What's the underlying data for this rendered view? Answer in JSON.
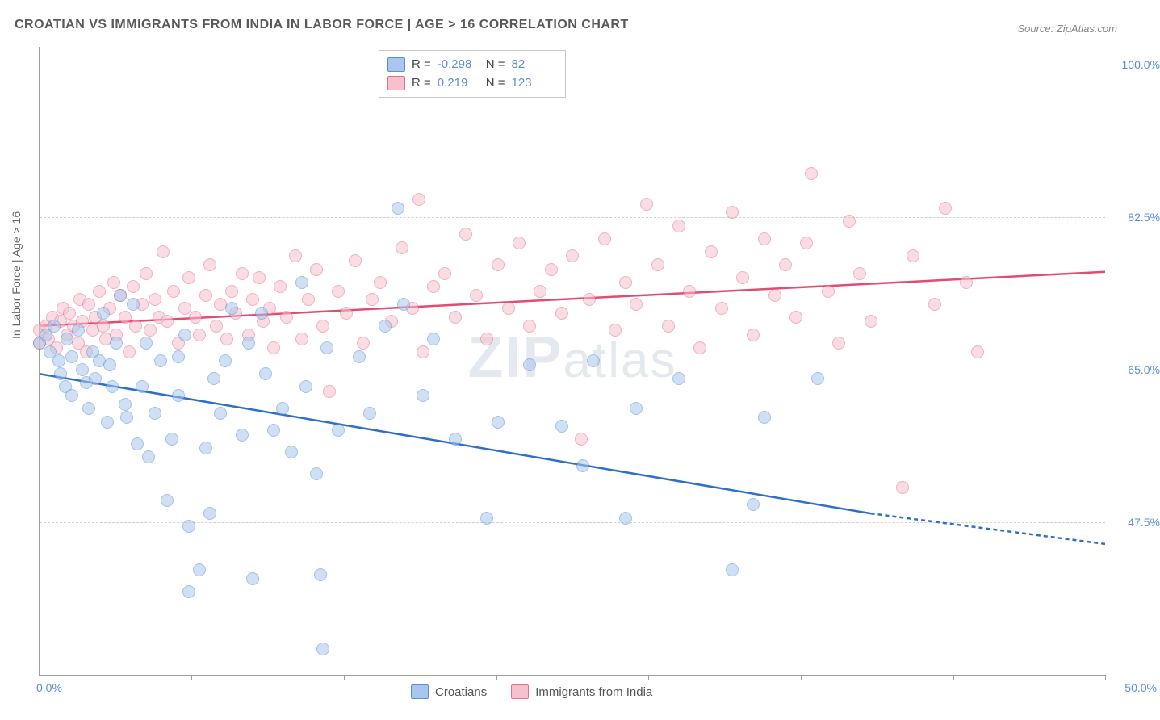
{
  "title": "CROATIAN VS IMMIGRANTS FROM INDIA IN LABOR FORCE | AGE > 16 CORRELATION CHART",
  "source": "Source: ZipAtlas.com",
  "watermark_a": "ZIP",
  "watermark_b": "atlas",
  "chart": {
    "type": "scatter-correlation",
    "ylabel": "In Labor Force | Age > 16",
    "xrange": [
      0,
      50
    ],
    "yrange": [
      30,
      102
    ],
    "xtick_labels": {
      "min": "0.0%",
      "max": "50.0%"
    },
    "xtick_positions": [
      0,
      7.14,
      14.28,
      21.43,
      28.57,
      35.71,
      42.86,
      50.0
    ],
    "grid_y": [
      47.5,
      65.0,
      82.5,
      100.0
    ],
    "ytick_labels": {
      "47.5": "47.5%",
      "65": "65.0%",
      "82.5": "82.5%",
      "100": "100.0%"
    },
    "background_color": "#ffffff",
    "grid_color": "#d0d0d0",
    "axis_color": "#9e9e9e"
  },
  "series": {
    "croatians": {
      "label": "Croatians",
      "R": "-0.298",
      "N": "82",
      "fill": "#a9c7ec",
      "stroke": "#5b8fd6",
      "fill_opacity": 0.55,
      "line_color": "#2f6fc9",
      "trend": {
        "x1": 0,
        "y1": 64.5,
        "x2_solid": 39,
        "y2_solid": 48.5,
        "x2": 50,
        "y2": 45.0
      },
      "points": [
        [
          0.0,
          68.0
        ],
        [
          0.3,
          69.0
        ],
        [
          0.5,
          67.0
        ],
        [
          0.7,
          70.0
        ],
        [
          0.9,
          66.0
        ],
        [
          1.0,
          64.5
        ],
        [
          1.2,
          63.0
        ],
        [
          1.3,
          68.5
        ],
        [
          1.5,
          62.0
        ],
        [
          1.5,
          66.5
        ],
        [
          1.8,
          69.5
        ],
        [
          2.0,
          65.0
        ],
        [
          2.2,
          63.5
        ],
        [
          2.3,
          60.5
        ],
        [
          2.5,
          67.0
        ],
        [
          2.6,
          64.0
        ],
        [
          2.8,
          66.0
        ],
        [
          3.0,
          71.5
        ],
        [
          3.2,
          59.0
        ],
        [
          3.3,
          65.5
        ],
        [
          3.4,
          63.0
        ],
        [
          3.6,
          68.0
        ],
        [
          3.8,
          73.5
        ],
        [
          4.0,
          61.0
        ],
        [
          4.1,
          59.5
        ],
        [
          4.4,
          72.5
        ],
        [
          4.6,
          56.5
        ],
        [
          4.8,
          63.0
        ],
        [
          5.0,
          68.0
        ],
        [
          5.1,
          55.0
        ],
        [
          5.4,
          60.0
        ],
        [
          5.7,
          66.0
        ],
        [
          6.0,
          50.0
        ],
        [
          6.2,
          57.0
        ],
        [
          6.5,
          62.0
        ],
        [
          6.5,
          66.5
        ],
        [
          6.8,
          69.0
        ],
        [
          7.0,
          47.0
        ],
        [
          7.0,
          39.5
        ],
        [
          7.5,
          42.0
        ],
        [
          7.8,
          56.0
        ],
        [
          8.0,
          48.5
        ],
        [
          8.2,
          64.0
        ],
        [
          8.5,
          60.0
        ],
        [
          8.7,
          66.0
        ],
        [
          9.0,
          72.0
        ],
        [
          9.5,
          57.5
        ],
        [
          9.8,
          68.0
        ],
        [
          10.0,
          41.0
        ],
        [
          10.4,
          71.5
        ],
        [
          10.6,
          64.5
        ],
        [
          11.0,
          58.0
        ],
        [
          11.4,
          60.5
        ],
        [
          11.8,
          55.5
        ],
        [
          12.3,
          75.0
        ],
        [
          12.5,
          63.0
        ],
        [
          13.0,
          53.0
        ],
        [
          13.2,
          41.5
        ],
        [
          13.3,
          33.0
        ],
        [
          13.5,
          67.5
        ],
        [
          14.0,
          58.0
        ],
        [
          15.0,
          66.5
        ],
        [
          15.5,
          60.0
        ],
        [
          16.2,
          70.0
        ],
        [
          16.8,
          83.5
        ],
        [
          17.1,
          72.5
        ],
        [
          18.0,
          62.0
        ],
        [
          18.5,
          68.5
        ],
        [
          19.5,
          57.0
        ],
        [
          21.0,
          48.0
        ],
        [
          21.5,
          59.0
        ],
        [
          23.0,
          65.5
        ],
        [
          24.5,
          58.5
        ],
        [
          25.5,
          54.0
        ],
        [
          26.0,
          66.0
        ],
        [
          27.5,
          48.0
        ],
        [
          28.0,
          60.5
        ],
        [
          30.0,
          64.0
        ],
        [
          32.5,
          42.0
        ],
        [
          33.5,
          49.5
        ],
        [
          34.0,
          59.5
        ],
        [
          36.5,
          64.0
        ]
      ]
    },
    "india": {
      "label": "Immigrants from India",
      "R": "0.219",
      "N": "123",
      "fill": "#f6c1cd",
      "stroke": "#e66f8d",
      "fill_opacity": 0.55,
      "line_color": "#e34b73",
      "trend": {
        "x1": 0,
        "y1": 70.0,
        "x2": 50,
        "y2": 76.2
      },
      "points": [
        [
          0.0,
          68.0
        ],
        [
          0.0,
          69.5
        ],
        [
          0.3,
          70.0
        ],
        [
          0.4,
          68.5
        ],
        [
          0.6,
          71.0
        ],
        [
          0.8,
          67.5
        ],
        [
          1.0,
          70.5
        ],
        [
          1.1,
          72.0
        ],
        [
          1.3,
          69.0
        ],
        [
          1.4,
          71.5
        ],
        [
          1.6,
          70.0
        ],
        [
          1.8,
          68.0
        ],
        [
          1.9,
          73.0
        ],
        [
          2.0,
          70.5
        ],
        [
          2.2,
          67.0
        ],
        [
          2.3,
          72.5
        ],
        [
          2.5,
          69.5
        ],
        [
          2.6,
          71.0
        ],
        [
          2.8,
          74.0
        ],
        [
          3.0,
          70.0
        ],
        [
          3.1,
          68.5
        ],
        [
          3.3,
          72.0
        ],
        [
          3.5,
          75.0
        ],
        [
          3.6,
          69.0
        ],
        [
          3.8,
          73.5
        ],
        [
          4.0,
          71.0
        ],
        [
          4.2,
          67.0
        ],
        [
          4.4,
          74.5
        ],
        [
          4.5,
          70.0
        ],
        [
          4.8,
          72.5
        ],
        [
          5.0,
          76.0
        ],
        [
          5.2,
          69.5
        ],
        [
          5.4,
          73.0
        ],
        [
          5.6,
          71.0
        ],
        [
          5.8,
          78.5
        ],
        [
          6.0,
          70.5
        ],
        [
          6.3,
          74.0
        ],
        [
          6.5,
          68.0
        ],
        [
          6.8,
          72.0
        ],
        [
          7.0,
          75.5
        ],
        [
          7.3,
          71.0
        ],
        [
          7.5,
          69.0
        ],
        [
          7.8,
          73.5
        ],
        [
          8.0,
          77.0
        ],
        [
          8.3,
          70.0
        ],
        [
          8.5,
          72.5
        ],
        [
          8.8,
          68.5
        ],
        [
          9.0,
          74.0
        ],
        [
          9.2,
          71.5
        ],
        [
          9.5,
          76.0
        ],
        [
          9.8,
          69.0
        ],
        [
          10.0,
          73.0
        ],
        [
          10.3,
          75.5
        ],
        [
          10.5,
          70.5
        ],
        [
          10.8,
          72.0
        ],
        [
          11.0,
          67.5
        ],
        [
          11.3,
          74.5
        ],
        [
          11.6,
          71.0
        ],
        [
          12.0,
          78.0
        ],
        [
          12.3,
          68.5
        ],
        [
          12.6,
          73.0
        ],
        [
          13.0,
          76.5
        ],
        [
          13.3,
          70.0
        ],
        [
          13.6,
          62.5
        ],
        [
          14.0,
          74.0
        ],
        [
          14.4,
          71.5
        ],
        [
          14.8,
          77.5
        ],
        [
          15.2,
          68.0
        ],
        [
          15.6,
          73.0
        ],
        [
          16.0,
          75.0
        ],
        [
          16.5,
          70.5
        ],
        [
          17.0,
          79.0
        ],
        [
          17.5,
          72.0
        ],
        [
          17.8,
          84.5
        ],
        [
          18.0,
          67.0
        ],
        [
          18.5,
          74.5
        ],
        [
          19.0,
          76.0
        ],
        [
          19.5,
          71.0
        ],
        [
          20.0,
          80.5
        ],
        [
          20.5,
          73.5
        ],
        [
          21.0,
          68.5
        ],
        [
          21.5,
          77.0
        ],
        [
          22.0,
          72.0
        ],
        [
          22.5,
          79.5
        ],
        [
          23.0,
          70.0
        ],
        [
          23.5,
          74.0
        ],
        [
          24.0,
          76.5
        ],
        [
          24.5,
          71.5
        ],
        [
          25.0,
          78.0
        ],
        [
          25.4,
          57.0
        ],
        [
          25.8,
          73.0
        ],
        [
          26.5,
          80.0
        ],
        [
          27.0,
          69.5
        ],
        [
          27.5,
          75.0
        ],
        [
          28.0,
          72.5
        ],
        [
          28.5,
          84.0
        ],
        [
          29.0,
          77.0
        ],
        [
          29.5,
          70.0
        ],
        [
          30.0,
          81.5
        ],
        [
          30.5,
          74.0
        ],
        [
          31.0,
          67.5
        ],
        [
          31.5,
          78.5
        ],
        [
          32.0,
          72.0
        ],
        [
          32.5,
          83.0
        ],
        [
          33.0,
          75.5
        ],
        [
          33.5,
          69.0
        ],
        [
          34.0,
          80.0
        ],
        [
          34.5,
          73.5
        ],
        [
          35.0,
          77.0
        ],
        [
          35.5,
          71.0
        ],
        [
          36.0,
          79.5
        ],
        [
          36.2,
          87.5
        ],
        [
          37.0,
          74.0
        ],
        [
          37.5,
          68.0
        ],
        [
          38.0,
          82.0
        ],
        [
          38.5,
          76.0
        ],
        [
          39.0,
          70.5
        ],
        [
          40.5,
          51.5
        ],
        [
          41.0,
          78.0
        ],
        [
          42.0,
          72.5
        ],
        [
          42.5,
          83.5
        ],
        [
          43.5,
          75.0
        ],
        [
          44.0,
          67.0
        ]
      ]
    }
  }
}
